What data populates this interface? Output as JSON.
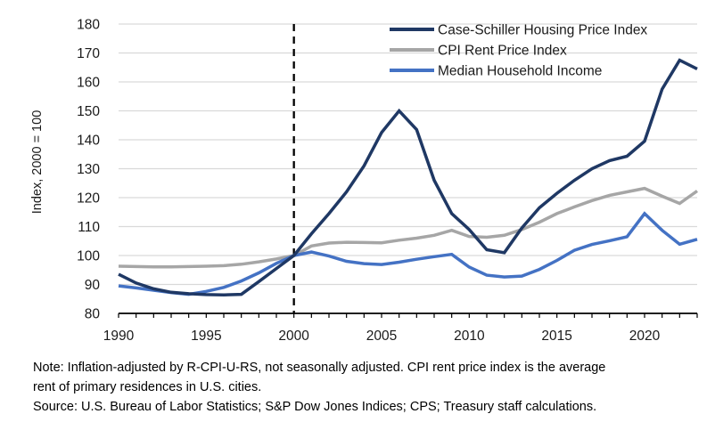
{
  "chart_data": {
    "type": "line",
    "title": "",
    "xlabel": "",
    "ylabel": "Index, 2000 = 100",
    "xlim": [
      1990,
      2023
    ],
    "ylim": [
      80,
      180
    ],
    "y_ticks": [
      80,
      90,
      100,
      110,
      120,
      130,
      140,
      150,
      160,
      170,
      180
    ],
    "x_ticks_labeled": [
      1990,
      1995,
      2000,
      2005,
      2010,
      2015,
      2020
    ],
    "x_minor_tick_interval": 1,
    "grid": "horizontal",
    "legend_position": "top-right-inside",
    "reference_line": {
      "x": 2000,
      "style": "dashed",
      "color": "#000000"
    },
    "years": [
      1990,
      1991,
      1992,
      1993,
      1994,
      1995,
      1996,
      1997,
      1998,
      1999,
      2000,
      2001,
      2002,
      2003,
      2004,
      2005,
      2006,
      2007,
      2008,
      2009,
      2010,
      2011,
      2012,
      2013,
      2014,
      2015,
      2016,
      2017,
      2018,
      2019,
      2020,
      2021,
      2022,
      2023
    ],
    "series": [
      {
        "name": "Case-Schiller Housing Price Index",
        "color": "#1F3864",
        "values": [
          93.5,
          90.5,
          88.5,
          87.3,
          86.8,
          86.5,
          86.4,
          86.6,
          91,
          95.5,
          100,
          107.5,
          114.5,
          122,
          131,
          142.5,
          150,
          143.5,
          126,
          114.5,
          109,
          102,
          101,
          109.5,
          116.5,
          121.5,
          126,
          130,
          132.8,
          134.3,
          139.5,
          157.5,
          167.5,
          164.5
        ]
      },
      {
        "name": "CPI Rent Price Index",
        "color": "#A6A6A6",
        "values": [
          96.3,
          96.2,
          96.1,
          96.1,
          96.2,
          96.3,
          96.5,
          97,
          97.8,
          98.8,
          100,
          103.3,
          104.3,
          104.6,
          104.5,
          104.4,
          105.3,
          106,
          107,
          108.7,
          106.6,
          106.3,
          107,
          109,
          111.5,
          114.5,
          116.8,
          119,
          120.8,
          122,
          123.2,
          120.5,
          118,
          122.3
        ]
      },
      {
        "name": "Median Household Income",
        "color": "#4472C4",
        "values": [
          89.5,
          88.8,
          88,
          87.2,
          86.6,
          87.6,
          89,
          91.2,
          94,
          97.3,
          100,
          101.2,
          99.8,
          98,
          97.2,
          96.9,
          97.7,
          98.7,
          99.6,
          100.4,
          96,
          93.2,
          92.6,
          92.9,
          95.2,
          98.3,
          101.8,
          103.8,
          105.1,
          106.5,
          114.5,
          108.7,
          103.9,
          105.6
        ]
      }
    ],
    "colors": {
      "grid": "#D9D9D9",
      "axis": "#000000",
      "tick_label": "#1a1a1a"
    }
  },
  "notes": {
    "note_line1": "Note: Inflation-adjusted by R-CPI-U-RS, not seasonally adjusted. CPI rent price index is the average",
    "note_line2": "rent of primary residences in U.S. cities.",
    "source_line": "Source: U.S. Bureau of Labor Statistics; S&P Dow Jones Indices; CPS; Treasury staff calculations."
  }
}
